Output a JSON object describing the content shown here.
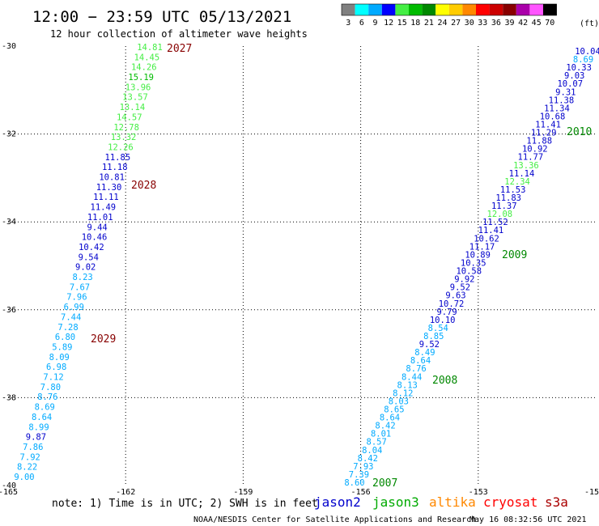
{
  "header": {
    "title": "12:00 − 23:59 UTC 05/13/2021",
    "subtitle": "12 hour collection of altimeter wave heights"
  },
  "colorbar": {
    "labels": [
      "3",
      "6",
      "9",
      "12",
      "15",
      "18",
      "21",
      "24",
      "27",
      "30",
      "33",
      "36",
      "39",
      "42",
      "45",
      "70"
    ],
    "unit": "(ft)",
    "colors": [
      "#808080",
      "#00ffff",
      "#00aaff",
      "#0000ff",
      "#44ee44",
      "#00bb00",
      "#008800",
      "#ffff00",
      "#ffcc00",
      "#ff8800",
      "#ff0000",
      "#cc0000",
      "#880000",
      "#aa00aa",
      "#ff55ff",
      "#000000"
    ]
  },
  "axes": {
    "lon_ticks": [
      "-165",
      "-162",
      "-159",
      "-156",
      "-153",
      "-15"
    ],
    "lat_ticks": [
      "-30",
      "-32",
      "-34",
      "-36",
      "-38",
      "-40"
    ]
  },
  "tracks": {
    "left": [
      {
        "v": "14.81",
        "c": "#44ee44"
      },
      {
        "v": "14.45",
        "c": "#44ee44"
      },
      {
        "v": "14.26",
        "c": "#44ee44"
      },
      {
        "v": "15.19",
        "c": "#00bb00"
      },
      {
        "v": "13.96",
        "c": "#44ee44"
      },
      {
        "v": "13.57",
        "c": "#44ee44"
      },
      {
        "v": "13.14",
        "c": "#44ee44"
      },
      {
        "v": "14.57",
        "c": "#44ee44"
      },
      {
        "v": "12.78",
        "c": "#44ee44"
      },
      {
        "v": "13.32",
        "c": "#44ee44"
      },
      {
        "v": "12.26",
        "c": "#44ee44"
      },
      {
        "v": "11.85",
        "c": "#0000cc"
      },
      {
        "v": "11.18",
        "c": "#0000cc"
      },
      {
        "v": "10.81",
        "c": "#0000cc"
      },
      {
        "v": "11.30",
        "c": "#0000cc"
      },
      {
        "v": "11.11",
        "c": "#0000cc"
      },
      {
        "v": "11.49",
        "c": "#0000cc"
      },
      {
        "v": "11.01",
        "c": "#0000cc"
      },
      {
        "v": "9.44",
        "c": "#0000cc"
      },
      {
        "v": "10.46",
        "c": "#0000cc"
      },
      {
        "v": "10.42",
        "c": "#0000cc"
      },
      {
        "v": "9.54",
        "c": "#0000cc"
      },
      {
        "v": "9.02",
        "c": "#0000cc"
      },
      {
        "v": "8.23",
        "c": "#00aaff"
      },
      {
        "v": "7.67",
        "c": "#00aaff"
      },
      {
        "v": "7.96",
        "c": "#00aaff"
      },
      {
        "v": "6.99",
        "c": "#00aaff"
      },
      {
        "v": "7.44",
        "c": "#00aaff"
      },
      {
        "v": "7.28",
        "c": "#00aaff"
      },
      {
        "v": "6.80",
        "c": "#00aaff"
      },
      {
        "v": "5.89",
        "c": "#00aaff"
      },
      {
        "v": "8.09",
        "c": "#00aaff"
      },
      {
        "v": "6.98",
        "c": "#00aaff"
      },
      {
        "v": "7.12",
        "c": "#00aaff"
      },
      {
        "v": "7.80",
        "c": "#00aaff"
      },
      {
        "v": "8.76",
        "c": "#00aaff"
      },
      {
        "v": "8.69",
        "c": "#00aaff"
      },
      {
        "v": "8.64",
        "c": "#00aaff"
      },
      {
        "v": "8.99",
        "c": "#00aaff"
      },
      {
        "v": "9.87",
        "c": "#0000cc"
      },
      {
        "v": "7.86",
        "c": "#00aaff"
      },
      {
        "v": "7.92",
        "c": "#00aaff"
      },
      {
        "v": "8.22",
        "c": "#00aaff"
      },
      {
        "v": "9.00",
        "c": "#00aaff"
      }
    ],
    "right": [
      {
        "v": "10.04",
        "c": "#0000cc"
      },
      {
        "v": "8.69",
        "c": "#00aaff"
      },
      {
        "v": "10.33",
        "c": "#0000cc"
      },
      {
        "v": "9.03",
        "c": "#0000cc"
      },
      {
        "v": "10.07",
        "c": "#0000cc"
      },
      {
        "v": "9.31",
        "c": "#0000cc"
      },
      {
        "v": "11.38",
        "c": "#0000cc"
      },
      {
        "v": "11.34",
        "c": "#0000cc"
      },
      {
        "v": "10.68",
        "c": "#0000cc"
      },
      {
        "v": "11.41",
        "c": "#0000cc"
      },
      {
        "v": "11.29",
        "c": "#0000cc"
      },
      {
        "v": "11.88",
        "c": "#0000cc"
      },
      {
        "v": "10.92",
        "c": "#0000cc"
      },
      {
        "v": "11.77",
        "c": "#0000cc"
      },
      {
        "v": "13.36",
        "c": "#44ee44"
      },
      {
        "v": "11.14",
        "c": "#0000cc"
      },
      {
        "v": "12.34",
        "c": "#44ee44"
      },
      {
        "v": "11.53",
        "c": "#0000cc"
      },
      {
        "v": "11.83",
        "c": "#0000cc"
      },
      {
        "v": "11.37",
        "c": "#0000cc"
      },
      {
        "v": "12.08",
        "c": "#44ee44"
      },
      {
        "v": "11.52",
        "c": "#0000cc"
      },
      {
        "v": "11.41",
        "c": "#0000cc"
      },
      {
        "v": "10.62",
        "c": "#0000cc"
      },
      {
        "v": "11.17",
        "c": "#0000cc"
      },
      {
        "v": "10.89",
        "c": "#0000cc"
      },
      {
        "v": "10.35",
        "c": "#0000cc"
      },
      {
        "v": "10.58",
        "c": "#0000cc"
      },
      {
        "v": "9.92",
        "c": "#0000cc"
      },
      {
        "v": "9.52",
        "c": "#0000cc"
      },
      {
        "v": "9.63",
        "c": "#0000cc"
      },
      {
        "v": "10.72",
        "c": "#0000cc"
      },
      {
        "v": "9.79",
        "c": "#0000cc"
      },
      {
        "v": "10.10",
        "c": "#0000cc"
      },
      {
        "v": "8.54",
        "c": "#00aaff"
      },
      {
        "v": "8.85",
        "c": "#00aaff"
      },
      {
        "v": "9.52",
        "c": "#0000cc"
      },
      {
        "v": "8.49",
        "c": "#00aaff"
      },
      {
        "v": "8.64",
        "c": "#00aaff"
      },
      {
        "v": "8.76",
        "c": "#00aaff"
      },
      {
        "v": "8.44",
        "c": "#00aaff"
      },
      {
        "v": "8.13",
        "c": "#00aaff"
      },
      {
        "v": "8.12",
        "c": "#00aaff"
      },
      {
        "v": "8.03",
        "c": "#00aaff"
      },
      {
        "v": "8.65",
        "c": "#00aaff"
      },
      {
        "v": "8.64",
        "c": "#00aaff"
      },
      {
        "v": "8.42",
        "c": "#00aaff"
      },
      {
        "v": "8.01",
        "c": "#00aaff"
      },
      {
        "v": "8.57",
        "c": "#00aaff"
      },
      {
        "v": "8.04",
        "c": "#00aaff"
      },
      {
        "v": "8.42",
        "c": "#00aaff"
      },
      {
        "v": "7.93",
        "c": "#00aaff"
      },
      {
        "v": "7.39",
        "c": "#00aaff"
      },
      {
        "v": "8.60",
        "c": "#00aaff"
      }
    ]
  },
  "times": [
    {
      "label": "2027",
      "color": "#880000"
    },
    {
      "label": "2028",
      "color": "#880000"
    },
    {
      "label": "2029",
      "color": "#880000"
    },
    {
      "label": "2010",
      "color": "#008800"
    },
    {
      "label": "2009",
      "color": "#008800"
    },
    {
      "label": "2008",
      "color": "#008800"
    },
    {
      "label": "2007",
      "color": "#008800"
    }
  ],
  "footer": {
    "note": "note: 1) Time is in UTC; 2) SWH is in feet",
    "satellites": [
      {
        "name": "jason2",
        "color": "#0000cc"
      },
      {
        "name": "jason3",
        "color": "#00aa00"
      },
      {
        "name": "altika",
        "color": "#ff8800"
      },
      {
        "name": "cryosat",
        "color": "#ff0000"
      },
      {
        "name": "s3a",
        "color": "#aa0000"
      }
    ],
    "credit": "NOAA/NESDIS Center for Satellite Applications and Research",
    "timestamp": "May 16 08:32:56 UTC 2021"
  }
}
